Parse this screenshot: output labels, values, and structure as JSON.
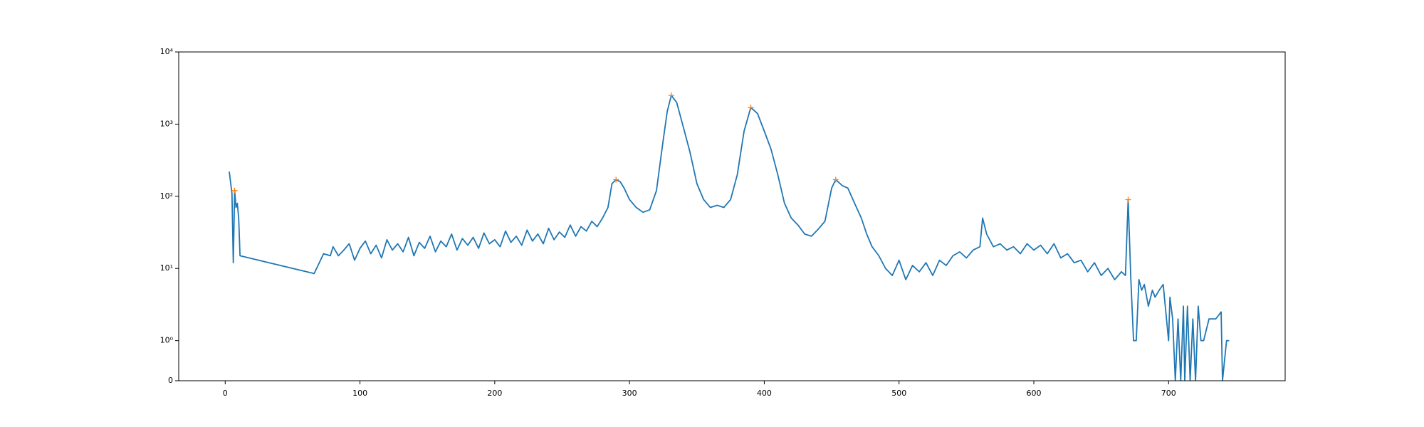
{
  "chart_data": {
    "type": "line",
    "yscale": "symlog",
    "linthresh": 1,
    "linscale": 0.5,
    "xlim": [
      -34.5,
      786.5
    ],
    "ylim": [
      0,
      10000
    ],
    "xticks": [
      0,
      100,
      200,
      300,
      400,
      500,
      600,
      700
    ],
    "yticks": [
      0,
      {
        "value": 1,
        "label": "10⁰"
      },
      {
        "value": 10,
        "label": "10¹"
      },
      {
        "value": 100,
        "label": "10²"
      },
      {
        "value": 1000,
        "label": "10³"
      },
      {
        "value": 10000,
        "label": "10⁴"
      }
    ],
    "series": [
      {
        "color": "#1f77b4",
        "marker": "line",
        "x": [
          3,
          5,
          6,
          7,
          8,
          9,
          10,
          11,
          66,
          73,
          78,
          80,
          84,
          88,
          92,
          96,
          100,
          104,
          108,
          112,
          116,
          120,
          124,
          128,
          132,
          136,
          140,
          144,
          148,
          152,
          156,
          160,
          164,
          168,
          172,
          176,
          180,
          184,
          188,
          192,
          196,
          200,
          204,
          208,
          212,
          216,
          220,
          224,
          228,
          232,
          236,
          240,
          244,
          248,
          252,
          256,
          260,
          264,
          268,
          272,
          276,
          280,
          284,
          287,
          290,
          293,
          296,
          300,
          305,
          310,
          315,
          320,
          325,
          328,
          331,
          335,
          340,
          345,
          350,
          355,
          360,
          365,
          370,
          375,
          380,
          385,
          390,
          395,
          400,
          405,
          410,
          415,
          420,
          425,
          430,
          435,
          440,
          445,
          450,
          453,
          458,
          462,
          467,
          472,
          476,
          480,
          485,
          490,
          495,
          500,
          505,
          510,
          515,
          520,
          525,
          530,
          535,
          540,
          545,
          550,
          555,
          560,
          562,
          565,
          570,
          575,
          580,
          585,
          590,
          595,
          600,
          605,
          610,
          615,
          620,
          625,
          630,
          635,
          640,
          645,
          650,
          655,
          660,
          665,
          668,
          670,
          672,
          674,
          676,
          678,
          680,
          682,
          685,
          688,
          690,
          693,
          696,
          700,
          701,
          703,
          705,
          707,
          709,
          711,
          712,
          714,
          716,
          718,
          720,
          722,
          724,
          726,
          730,
          735,
          739,
          740,
          743,
          745
        ],
        "values": [
          220,
          110,
          12,
          120,
          70,
          80,
          50,
          15,
          8.5,
          16,
          15,
          20,
          15,
          18,
          22,
          13,
          19,
          24,
          16,
          21,
          14,
          25,
          18,
          22,
          17,
          27,
          15,
          23,
          19,
          28,
          17,
          24,
          20,
          30,
          18,
          26,
          21,
          27,
          19,
          31,
          22,
          25,
          20,
          33,
          23,
          28,
          21,
          34,
          24,
          30,
          22,
          36,
          25,
          32,
          27,
          40,
          28,
          38,
          33,
          45,
          38,
          50,
          70,
          150,
          170,
          160,
          130,
          90,
          70,
          60,
          65,
          120,
          600,
          1500,
          2500,
          2000,
          900,
          400,
          150,
          90,
          70,
          75,
          70,
          90,
          200,
          800,
          1700,
          1400,
          800,
          450,
          200,
          80,
          50,
          40,
          30,
          28,
          35,
          45,
          130,
          170,
          140,
          130,
          80,
          50,
          30,
          20,
          15,
          10,
          8,
          13,
          7,
          11,
          9,
          12,
          8,
          13,
          11,
          15,
          17,
          14,
          18,
          20,
          50,
          30,
          20,
          22,
          18,
          20,
          16,
          22,
          18,
          21,
          16,
          22,
          14,
          16,
          12,
          13,
          9,
          12,
          8,
          10,
          7,
          9,
          8,
          90,
          7,
          1,
          1,
          7,
          5,
          6,
          3,
          5,
          4,
          5,
          6,
          1,
          4,
          2,
          0,
          2,
          0,
          3,
          0,
          3,
          0,
          2,
          0,
          3,
          1,
          1,
          2,
          2,
          2.5,
          0,
          1,
          1
        ]
      },
      {
        "color": "#ff7f0e",
        "marker": "+",
        "x": [
          7,
          290,
          331,
          390,
          453,
          670
        ],
        "values": [
          120,
          170,
          2500,
          1700,
          170,
          90
        ]
      }
    ]
  }
}
